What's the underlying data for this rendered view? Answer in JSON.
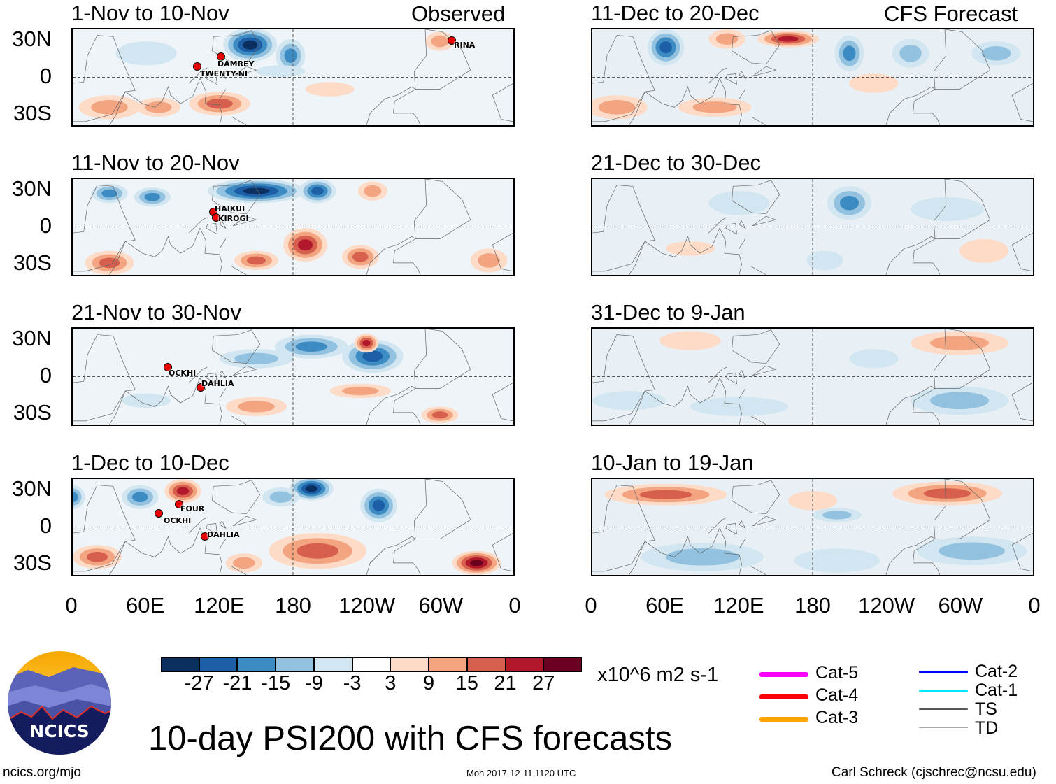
{
  "panels_left_header": "Observed",
  "panels_right_header": "CFS Forecast",
  "panels": [
    {
      "title": "1-Nov to 10-Nov",
      "storms": [
        "DAMREY",
        "TWENTY-NI",
        "RINA"
      ]
    },
    {
      "title": "11-Nov to 20-Nov",
      "storms": [
        "HAIKUI",
        "KIROGI"
      ]
    },
    {
      "title": "21-Nov to 30-Nov",
      "storms": [
        "OCKHI",
        "DAHLIA"
      ]
    },
    {
      "title": "1-Dec to 10-Dec",
      "storms": [
        "FOUR",
        "OCKHI",
        "DAHLIA"
      ]
    },
    {
      "title": "11-Dec to 20-Dec",
      "storms": []
    },
    {
      "title": "21-Dec to 30-Dec",
      "storms": []
    },
    {
      "title": "31-Dec to 9-Jan",
      "storms": []
    },
    {
      "title": "10-Jan to 19-Jan",
      "storms": []
    }
  ],
  "lat_ticks": [
    "30N",
    "0",
    "30S"
  ],
  "lon_ticks": [
    "0",
    "60E",
    "120E",
    "180",
    "120W",
    "60W",
    "0"
  ],
  "colorbar": {
    "colors": [
      "#0b2f5e",
      "#1d5fa7",
      "#3d8bc3",
      "#92c2df",
      "#d2e6f1",
      "#ffffff",
      "#fddbc7",
      "#f3a481",
      "#d6604d",
      "#b2182b",
      "#6b0020"
    ],
    "labels": [
      "-27",
      "-21",
      "-15",
      "-9",
      "-3",
      "3",
      "9",
      "15",
      "21",
      "27"
    ],
    "units": "x10^6 m2 s-1"
  },
  "legend": [
    {
      "label": "Cat-5",
      "color": "#ff00ff"
    },
    {
      "label": "Cat-4",
      "color": "#ff0000"
    },
    {
      "label": "Cat-3",
      "color": "#ffa500"
    },
    {
      "label": "Cat-2",
      "color": "#0000ff"
    },
    {
      "label": "Cat-1",
      "color": "#00e5ff"
    },
    {
      "label": "TS",
      "color": "#555555"
    },
    {
      "label": "TD",
      "color": "#aaaaaa"
    }
  ],
  "main_title": "10-day PSI200 with CFS forecasts",
  "logo_text": "NCICS",
  "footer": {
    "left": "ncics.org/mjo",
    "center": "Mon 2017-12-11 1120 UTC",
    "right": "Carl Schreck (cjschrec@ncsu.edu)"
  }
}
